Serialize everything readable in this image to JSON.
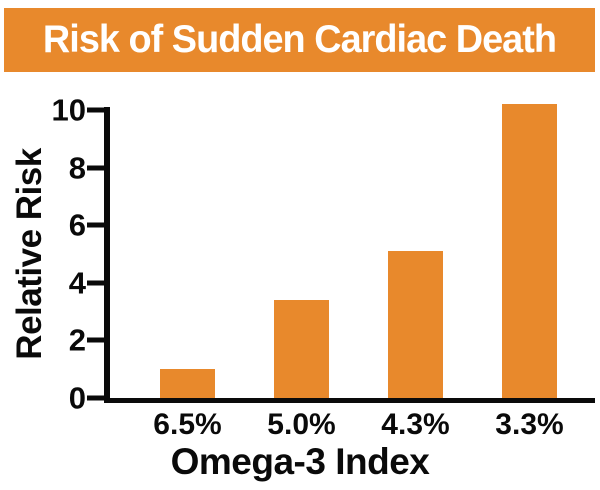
{
  "header": {
    "title": "Risk of Sudden Cardiac Death",
    "bg_color": "#E8892C",
    "text_color": "#FFFFFF"
  },
  "chart_data": {
    "type": "bar",
    "title": "Risk of Sudden Cardiac Death",
    "categories": [
      "6.5%",
      "5.0%",
      "4.3%",
      "3.3%"
    ],
    "values": [
      1.0,
      3.4,
      5.1,
      10.2
    ],
    "xlabel": "Omega-3 Index",
    "ylabel": "Relative Risk",
    "ylim": [
      0,
      10
    ],
    "yticks": [
      0,
      2,
      4,
      6,
      8,
      10
    ],
    "grid": false,
    "legend": false,
    "bar_color": "#E8892C",
    "axis_color": "#0A0A0A"
  }
}
